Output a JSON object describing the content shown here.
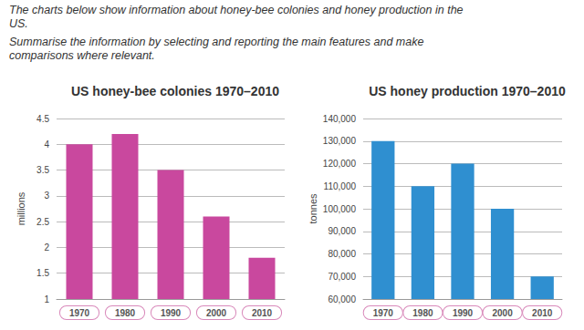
{
  "header": {
    "lines": [
      "The charts below show information about honey-bee colonies and honey production in the US.",
      "Summarise the information by selecting and reporting the main features and make comparisons where relevant."
    ]
  },
  "chart_data": [
    {
      "type": "bar",
      "title": "US honey-bee colonies 1970–2010",
      "y_label": "millions",
      "categories": [
        "1970",
        "1980",
        "1990",
        "2000",
        "2010"
      ],
      "values": [
        4,
        4.2,
        3.5,
        2.6,
        1.8
      ],
      "color": "#c9489e",
      "ylim": [
        1,
        4.5
      ],
      "yticks": [
        1,
        1.5,
        2,
        2.5,
        3,
        3.5,
        4,
        4.5
      ],
      "grid": true
    },
    {
      "type": "bar",
      "title": "US honey production 1970–2010",
      "y_label": "tonnes",
      "categories": [
        "1970",
        "1980",
        "1990",
        "2000",
        "2010"
      ],
      "values": [
        130000,
        110000,
        120000,
        100000,
        70000
      ],
      "color": "#2f8fd0",
      "ylim": [
        60000,
        140000
      ],
      "yticks": [
        {
          "value": 60000,
          "label": "60,000"
        },
        {
          "value": 70000,
          "label": "70,000"
        },
        {
          "value": 80000,
          "label": "80,000"
        },
        {
          "value": 90000,
          "label": "90,000"
        },
        {
          "value": 100000,
          "label": "100,000"
        },
        {
          "value": 110000,
          "label": "110,000"
        },
        {
          "value": 120000,
          "label": "120,000"
        },
        {
          "value": 130000,
          "label": "130,000"
        },
        {
          "value": 140000,
          "label": "140,000"
        }
      ],
      "grid": true
    }
  ]
}
